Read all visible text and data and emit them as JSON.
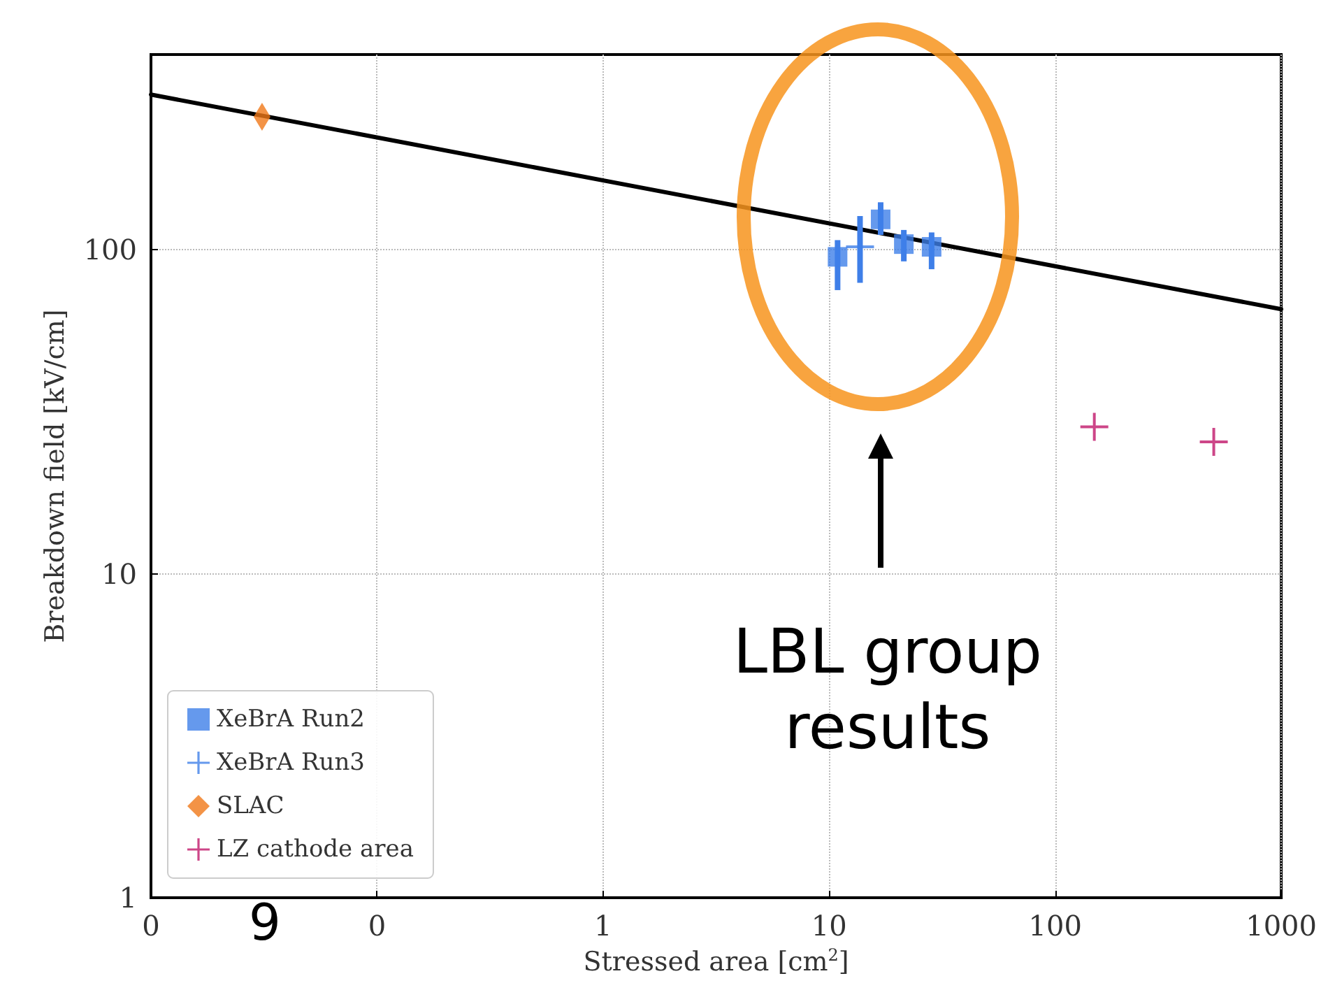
{
  "chart_data": {
    "type": "scatter",
    "xlabel": "Stressed area [cm$^{2}$]",
    "ylabel": "Breakdown field [kV/cm]",
    "log": "xy",
    "grid": true,
    "legend": "bottom left",
    "xlim": [
      0.01,
      1000
    ],
    "xticks": [
      {
        "value": 0.01,
        "label": "0"
      },
      {
        "value": 0.1,
        "label": "0"
      },
      1,
      10,
      100,
      1000
    ],
    "ylim": [
      1,
      400
    ],
    "yticks": [
      1,
      10,
      100
    ],
    "annotations": [
      "LBL group results",
      "9"
    ],
    "series": [
      {
        "name": "XeBrA Run2",
        "color": "#3f7fe8",
        "marker": "square",
        "x": [
          10.9,
          16.9,
          21.4,
          28.4
        ],
        "values": [
          95,
          124,
          104,
          102
        ],
        "errors": [
          [
            75,
            107
          ],
          [
            111,
            140
          ],
          [
            92,
            115
          ],
          [
            87,
            113
          ]
        ]
      },
      {
        "name": "XeBrA Run3",
        "color": "#3f7fe8",
        "marker": "cross",
        "x": [
          13.7
        ],
        "values": [
          102
        ],
        "errors": [
          [
            79,
            127
          ]
        ]
      },
      {
        "name": "SLAC",
        "color": "#f07818",
        "marker": "diamond",
        "x": [
          0.031
        ],
        "values": [
          257
        ]
      },
      {
        "name": "LZ cathode area",
        "color": "#c0186a",
        "marker": "cross",
        "x": [
          149,
          503
        ],
        "values": [
          28.4,
          25.5
        ]
      },
      {
        "type": "line",
        "color": "#000000",
        "marker": "none",
        "line_style": "solid",
        "x": [
          0.01,
          1000
        ],
        "values": [
          301,
          65.5
        ]
      }
    ]
  }
}
